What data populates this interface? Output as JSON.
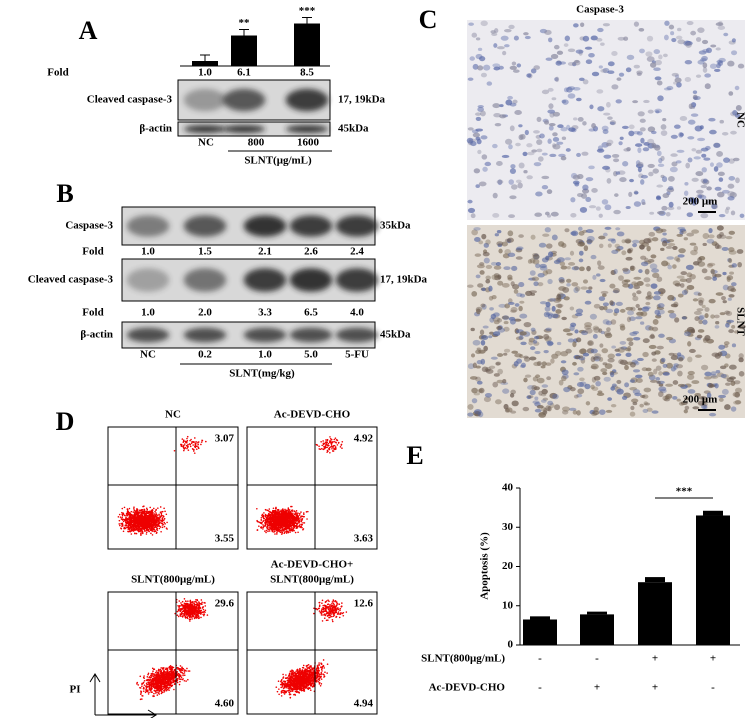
{
  "panel_a": {
    "letter": "A",
    "significance": [
      "**",
      "***"
    ],
    "fold_label": "Fold",
    "folds": [
      {
        "value": 1.0,
        "label": "1.0"
      },
      {
        "value": 6.1,
        "label": "6.1"
      },
      {
        "value": 8.5,
        "label": "8.5"
      }
    ],
    "bands": [
      {
        "label": "Cleaved caspase-3",
        "size": "17, 19kDa"
      },
      {
        "label": "β-actin",
        "size": "45kDa"
      }
    ],
    "lanes": [
      "NC",
      "800",
      "1600"
    ],
    "treatment": "SLNT(μg/mL)"
  },
  "panel_b": {
    "letter": "B",
    "fold_label": "Fold",
    "bands": [
      {
        "label": "Caspase-3",
        "size": "35kDa",
        "folds": [
          "1.0",
          "1.5",
          "2.1",
          "2.6",
          "2.4"
        ]
      },
      {
        "label": "Cleaved caspase-3",
        "size": "17, 19kDa",
        "folds": [
          "1.0",
          "2.0",
          "3.3",
          "6.5",
          "4.0"
        ]
      },
      {
        "label": "β-actin",
        "size": "45kDa"
      }
    ],
    "lanes": [
      "NC",
      "0.2",
      "1.0",
      "5.0",
      "5-FU"
    ],
    "treatment": "SLNT(mg/kg)"
  },
  "panel_c": {
    "letter": "C",
    "title": "Caspase-3",
    "rows": [
      "NC",
      "SLNT"
    ],
    "scale_bar": "200 μm"
  },
  "panel_d": {
    "letter": "D",
    "axis_label": "PI",
    "plots": [
      {
        "title": [
          "NC"
        ],
        "upper": "3.07",
        "lower": "3.55"
      },
      {
        "title": [
          "Ac-DEVD-CHO"
        ],
        "upper": "4.92",
        "lower": "3.63"
      },
      {
        "title": [
          "SLNT(800μg/mL)"
        ],
        "upper": "29.6",
        "lower": "4.60"
      },
      {
        "title": [
          "Ac-DEVD-CHO+",
          "SLNT(800μg/mL)"
        ],
        "upper": "12.6",
        "lower": "4.94"
      }
    ]
  },
  "panel_e": {
    "letter": "E",
    "y_label": "Apoptosis (%)",
    "ylim": [
      0,
      40
    ],
    "yticks": [
      0,
      10,
      20,
      30,
      40
    ],
    "values": [
      6.5,
      7.8,
      16,
      33
    ],
    "errors": [
      0.8,
      0.7,
      1.3,
      1.2
    ],
    "significance": "***",
    "conditions": [
      {
        "label": "SLNT(800μg/mL)",
        "signs": [
          "-",
          "-",
          "+",
          "+"
        ]
      },
      {
        "label": "Ac-DEVD-CHO",
        "signs": [
          "-",
          "+",
          "+",
          "-"
        ]
      }
    ]
  }
}
